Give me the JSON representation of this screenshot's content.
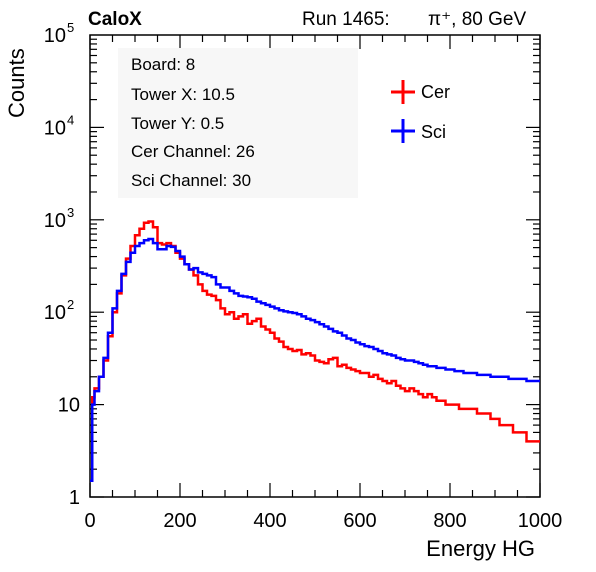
{
  "chart_data": {
    "type": "line",
    "subtype": "step histogram",
    "experiment_label": "CaloX",
    "run_label": "Run 1465:",
    "beam_label": "π⁺, 80 GeV",
    "xlabel": "Energy HG",
    "ylabel": "Counts",
    "xlim": [
      0,
      1000
    ],
    "ylim": [
      1,
      100000
    ],
    "y_scale": "log",
    "x_ticks": [
      "0",
      "200",
      "400",
      "600",
      "800",
      "1000"
    ],
    "y_ticks": [
      {
        "value": 1,
        "label": "1",
        "exp": ""
      },
      {
        "value": 10,
        "label": "10",
        "exp": ""
      },
      {
        "value": 100,
        "label": "10",
        "exp": "2"
      },
      {
        "value": 1000,
        "label": "10",
        "exp": "3"
      },
      {
        "value": 10000,
        "label": "10",
        "exp": "4"
      },
      {
        "value": 100000,
        "label": "10",
        "exp": "5"
      }
    ],
    "grid": false,
    "legend_position": "top-right",
    "info_lines": [
      "Board: 8",
      "Tower X: 10.5",
      "Tower Y: 0.5",
      "Cer Channel: 26",
      "Sci Channel: 30"
    ],
    "series": [
      {
        "name": "Cer",
        "color": "#ff0000",
        "x": [
          0,
          5,
          10,
          20,
          30,
          40,
          50,
          60,
          70,
          80,
          90,
          100,
          110,
          120,
          130,
          140,
          150,
          160,
          170,
          180,
          190,
          200,
          210,
          220,
          230,
          240,
          250,
          260,
          270,
          280,
          290,
          300,
          310,
          320,
          330,
          340,
          350,
          360,
          370,
          380,
          390,
          400,
          410,
          420,
          430,
          440,
          450,
          460,
          470,
          480,
          490,
          500,
          510,
          520,
          530,
          540,
          550,
          560,
          570,
          580,
          590,
          600,
          610,
          620,
          630,
          640,
          650,
          660,
          670,
          680,
          690,
          700,
          710,
          720,
          730,
          740,
          750,
          760,
          770,
          780,
          790,
          800,
          810,
          820,
          830,
          840,
          850,
          860,
          870,
          880,
          890,
          900,
          910,
          920,
          930,
          940,
          950,
          960,
          970,
          980,
          990
        ],
        "y": [
          1.5,
          12,
          15,
          20,
          30,
          55,
          100,
          160,
          250,
          380,
          520,
          680,
          800,
          930,
          960,
          830,
          560,
          540,
          560,
          520,
          440,
          380,
          330,
          290,
          250,
          200,
          170,
          155,
          150,
          135,
          110,
          95,
          100,
          85,
          90,
          95,
          75,
          80,
          85,
          70,
          65,
          60,
          52,
          48,
          42,
          40,
          38,
          39,
          35,
          36,
          34,
          30,
          29,
          28,
          31,
          32,
          26,
          27,
          25,
          24,
          23,
          22,
          22,
          20,
          21,
          19,
          18,
          17,
          18,
          16,
          15,
          14,
          15,
          14,
          13,
          12,
          13,
          12,
          11,
          11,
          10,
          10,
          10,
          9,
          9,
          9,
          9,
          8,
          8,
          8,
          7,
          7,
          6,
          6,
          6,
          5,
          5,
          5,
          4,
          4,
          4
        ]
      },
      {
        "name": "Sci",
        "color": "#0000ff",
        "x": [
          0,
          5,
          10,
          20,
          30,
          40,
          50,
          60,
          70,
          80,
          90,
          100,
          110,
          120,
          130,
          140,
          150,
          160,
          170,
          180,
          190,
          200,
          210,
          220,
          230,
          240,
          250,
          260,
          270,
          280,
          290,
          300,
          310,
          320,
          330,
          340,
          350,
          360,
          370,
          380,
          390,
          400,
          410,
          420,
          430,
          440,
          450,
          460,
          470,
          480,
          490,
          500,
          510,
          520,
          530,
          540,
          550,
          560,
          570,
          580,
          590,
          600,
          610,
          620,
          630,
          640,
          650,
          660,
          670,
          680,
          690,
          700,
          710,
          720,
          730,
          740,
          750,
          760,
          770,
          780,
          790,
          800,
          810,
          820,
          830,
          840,
          850,
          860,
          870,
          880,
          890,
          900,
          910,
          920,
          930,
          940,
          950,
          960,
          970,
          980,
          990
        ],
        "y": [
          1.5,
          10,
          14,
          20,
          32,
          60,
          110,
          170,
          260,
          350,
          440,
          520,
          560,
          600,
          620,
          560,
          480,
          480,
          520,
          510,
          460,
          400,
          330,
          290,
          300,
          270,
          260,
          250,
          240,
          200,
          185,
          185,
          170,
          160,
          150,
          148,
          145,
          140,
          130,
          125,
          120,
          115,
          110,
          105,
          102,
          100,
          98,
          95,
          90,
          85,
          82,
          78,
          74,
          70,
          66,
          62,
          60,
          56,
          52,
          50,
          47,
          45,
          43,
          42,
          40,
          38,
          36,
          35,
          34,
          32,
          31,
          30,
          30,
          29,
          28,
          27,
          26,
          26,
          25,
          25,
          24,
          24,
          23,
          23,
          22,
          22,
          22,
          21,
          21,
          21,
          20,
          20,
          20,
          20,
          19,
          19,
          19,
          19,
          18,
          18,
          18
        ]
      }
    ]
  }
}
